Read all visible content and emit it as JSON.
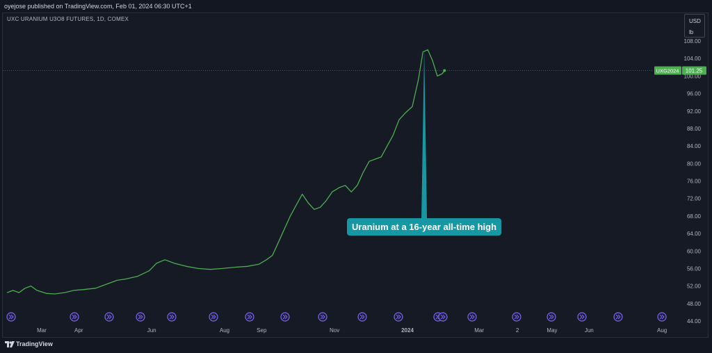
{
  "header": {
    "publisher_text": "oyejose published on TradingView.com, Feb 01, 2024 06:30 UTC+1"
  },
  "symbol_title": "UXC URANIUM U3O8 FUTURES, 1D, COMEX",
  "unit": {
    "currency": "USD",
    "measure": "lb"
  },
  "price_label": {
    "ticker": "UXG2024",
    "value": "101.25"
  },
  "annotation": {
    "text": "Uranium at a 16-year all-time high"
  },
  "footer": {
    "brand": "TradingView"
  },
  "colors": {
    "line": "#4caf50",
    "price_tag": "#4caf50",
    "callout": "#1598a4",
    "event_icon": "#7b68ee"
  },
  "chart_data": {
    "type": "line",
    "title": "UXC URANIUM U3O8 FUTURES, 1D, COMEX",
    "xlabel": "",
    "ylabel": "USD / lb",
    "ylim": [
      44,
      108
    ],
    "yticks": [
      "44.00",
      "48.00",
      "52.00",
      "56.00",
      "60.00",
      "64.00",
      "68.00",
      "72.00",
      "76.00",
      "80.00",
      "84.00",
      "88.00",
      "92.00",
      "96.00",
      "100.00",
      "104.00",
      "108.00"
    ],
    "xticks": [
      {
        "label": "Mar",
        "date": "2023-03-01"
      },
      {
        "label": "Apr",
        "date": "2023-04-01"
      },
      {
        "label": "Jun",
        "date": "2023-06-01"
      },
      {
        "label": "Aug",
        "date": "2023-08-01"
      },
      {
        "label": "Sep",
        "date": "2023-09-01"
      },
      {
        "label": "Nov",
        "date": "2023-11-01"
      },
      {
        "label": "2024",
        "date": "2024-01-01"
      },
      {
        "label": "Mar",
        "date": "2024-03-01"
      },
      {
        "label": "2",
        "date": "2024-04-02"
      },
      {
        "label": "May",
        "date": "2024-05-01"
      },
      {
        "label": "Jun",
        "date": "2024-06-01"
      },
      {
        "label": "Aug",
        "date": "2024-08-01"
      }
    ],
    "series": [
      {
        "name": "UXG2024",
        "x": [
          "2023-01-31",
          "2023-02-05",
          "2023-02-10",
          "2023-02-15",
          "2023-02-20",
          "2023-02-25",
          "2023-03-05",
          "2023-03-12",
          "2023-03-20",
          "2023-03-28",
          "2023-04-05",
          "2023-04-15",
          "2023-04-25",
          "2023-05-03",
          "2023-05-10",
          "2023-05-20",
          "2023-05-30",
          "2023-06-05",
          "2023-06-12",
          "2023-06-20",
          "2023-06-30",
          "2023-07-10",
          "2023-07-20",
          "2023-07-30",
          "2023-08-10",
          "2023-08-20",
          "2023-08-30",
          "2023-09-05",
          "2023-09-10",
          "2023-09-15",
          "2023-09-20",
          "2023-09-25",
          "2023-09-30",
          "2023-10-05",
          "2023-10-10",
          "2023-10-15",
          "2023-10-20",
          "2023-10-25",
          "2023-10-30",
          "2023-11-05",
          "2023-11-10",
          "2023-11-15",
          "2023-11-20",
          "2023-11-25",
          "2023-11-30",
          "2023-12-05",
          "2023-12-10",
          "2023-12-15",
          "2023-12-20",
          "2023-12-25",
          "2023-12-30",
          "2024-01-05",
          "2024-01-10",
          "2024-01-14",
          "2024-01-18",
          "2024-01-22",
          "2024-01-26",
          "2024-01-30",
          "2024-02-01"
        ],
        "values": [
          50.5,
          51.0,
          50.5,
          51.5,
          52.0,
          51.0,
          50.3,
          50.2,
          50.5,
          51.0,
          51.2,
          51.5,
          52.5,
          53.3,
          53.6,
          54.2,
          55.5,
          57.2,
          58.0,
          57.2,
          56.5,
          56.0,
          55.8,
          56.0,
          56.3,
          56.5,
          57.0,
          58.0,
          59.0,
          62.0,
          65.0,
          68.0,
          70.5,
          73.0,
          71.0,
          69.5,
          70.0,
          71.5,
          73.5,
          74.5,
          75.0,
          73.5,
          75.0,
          78.0,
          80.5,
          81.0,
          81.5,
          84.0,
          86.5,
          90.0,
          91.5,
          93.0,
          99.0,
          105.5,
          106.0,
          103.5,
          100.0,
          100.5,
          101.25
        ]
      }
    ],
    "last_value": 101.25,
    "annotation_point": {
      "date": "2024-01-15",
      "value": 106.0
    }
  }
}
